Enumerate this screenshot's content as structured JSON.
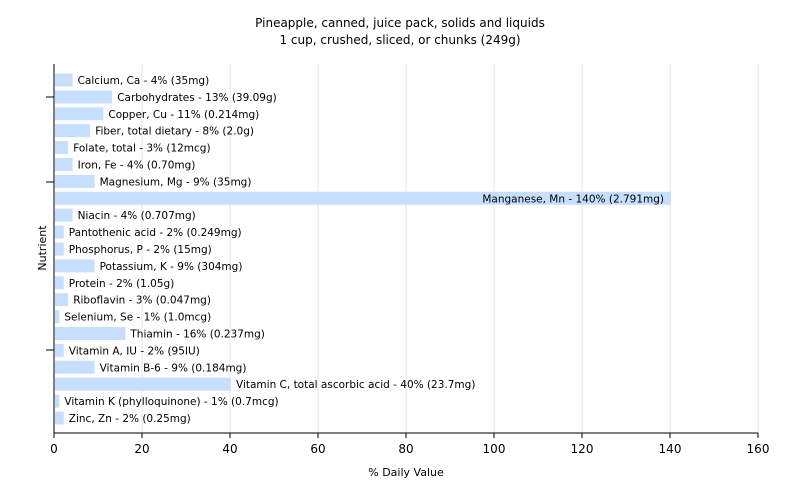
{
  "chart_data": {
    "type": "bar",
    "orientation": "horizontal",
    "title": "Pineapple, canned, juice pack, solids and liquids",
    "subtitle": "1 cup, crushed, sliced, or chunks (249g)",
    "xlabel": "% Daily Value",
    "ylabel": "Nutrient",
    "xlim": [
      0,
      160
    ],
    "xticks": [
      0,
      20,
      40,
      60,
      80,
      100,
      120,
      140,
      160
    ],
    "grid": true,
    "bar_color": "#c6dfff",
    "categories": [
      "Calcium, Ca",
      "Carbohydrates",
      "Copper, Cu",
      "Fiber, total dietary",
      "Folate, total",
      "Iron, Fe",
      "Magnesium, Mg",
      "Manganese, Mn",
      "Niacin",
      "Pantothenic acid",
      "Phosphorus, P",
      "Potassium, K",
      "Protein",
      "Riboflavin",
      "Selenium, Se",
      "Thiamin",
      "Vitamin A, IU",
      "Vitamin B-6",
      "Vitamin C, total ascorbic acid",
      "Vitamin K (phylloquinone)",
      "Zinc, Zn"
    ],
    "values": [
      4,
      13,
      11,
      8,
      3,
      4,
      9,
      140,
      4,
      2,
      2,
      9,
      2,
      3,
      1,
      16,
      2,
      9,
      40,
      1,
      2
    ],
    "labels": [
      "Calcium, Ca - 4% (35mg)",
      "Carbohydrates - 13% (39.09g)",
      "Copper, Cu - 11% (0.214mg)",
      "Fiber, total dietary - 8% (2.0g)",
      "Folate, total - 3% (12mcg)",
      "Iron, Fe - 4% (0.70mg)",
      "Magnesium, Mg - 9% (35mg)",
      "Manganese, Mn - 140% (2.791mg)",
      "Niacin - 4% (0.707mg)",
      "Pantothenic acid - 2% (0.249mg)",
      "Phosphorus, P - 2% (15mg)",
      "Potassium, K - 9% (304mg)",
      "Protein - 2% (1.05g)",
      "Riboflavin - 3% (0.047mg)",
      "Selenium, Se - 1% (1.0mcg)",
      "Thiamin - 16% (0.237mg)",
      "Vitamin A, IU - 2% (95IU)",
      "Vitamin B-6 - 9% (0.184mg)",
      "Vitamin C, total ascorbic acid - 40% (23.7mg)",
      "Vitamin K (phylloquinone) - 1% (0.7mcg)",
      "Zinc, Zn - 2% (0.25mg)"
    ]
  }
}
